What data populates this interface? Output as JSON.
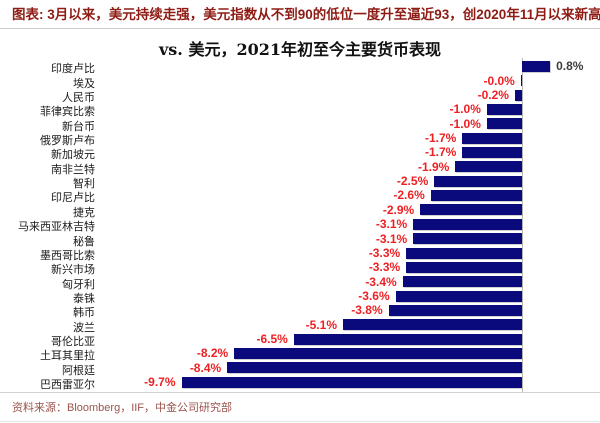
{
  "header": {
    "title": "图表: 3月以来，美元持续走强，美元指数从不到90的低位一度升至逼近93，创2020年11月以来新高"
  },
  "chart_data": {
    "type": "bar",
    "orientation": "horizontal",
    "title": "vs. 美元，2021年初至今主要货币表现",
    "categories": [
      "印度卢比",
      "埃及",
      "人民币",
      "菲律宾比索",
      "新台币",
      "俄罗斯卢布",
      "新加坡元",
      "南非兰特",
      "智利",
      "印尼卢比",
      "捷克",
      "马来西亚林吉特",
      "秘鲁",
      "墨西哥比索",
      "新兴市场",
      "匈牙利",
      "泰铢",
      "韩币",
      "波兰",
      "哥伦比亚",
      "土耳其里拉",
      "阿根廷",
      "巴西雷亚尔"
    ],
    "values": [
      0.8,
      -0.0,
      -0.2,
      -1.0,
      -1.0,
      -1.7,
      -1.7,
      -1.9,
      -2.5,
      -2.6,
      -2.9,
      -3.1,
      -3.1,
      -3.3,
      -3.3,
      -3.4,
      -3.6,
      -3.8,
      -5.1,
      -6.5,
      -8.2,
      -8.4,
      -9.7
    ],
    "labels": [
      "0.8%",
      "-0.0%",
      "-0.2%",
      "-1.0%",
      "-1.0%",
      "-1.7%",
      "-1.7%",
      "-1.9%",
      "-2.5%",
      "-2.6%",
      "-2.9%",
      "-3.1%",
      "-3.1%",
      "-3.3%",
      "-3.3%",
      "-3.4%",
      "-3.6%",
      "-3.8%",
      "-5.1%",
      "-6.5%",
      "-8.2%",
      "-8.4%",
      "-9.7%"
    ],
    "xlabel": "",
    "ylabel": "",
    "xlim": [
      -10.4,
      2.2
    ],
    "grid": false,
    "legend": "none",
    "bar_color": "#0a0a7d",
    "negative_label_color": "#ee2024",
    "positive_label_color": "#3d3d3d",
    "axis_line_color": "#b9b9b9"
  },
  "footer": {
    "source": "资料来源：Bloomberg，IIF，中金公司研究部"
  }
}
